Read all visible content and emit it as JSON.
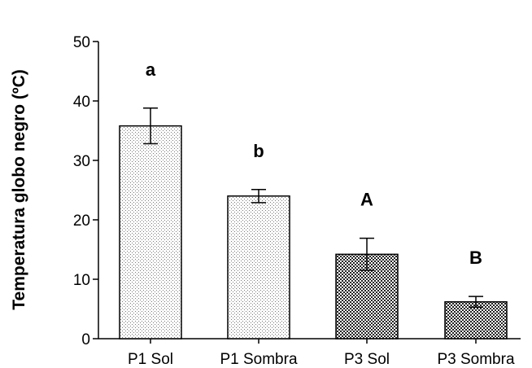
{
  "chart_data": {
    "type": "bar",
    "categories": [
      "P1 Sol",
      "P1 Sombra",
      "P3 Sol",
      "P3 Sombra"
    ],
    "values": [
      35.8,
      24.0,
      14.2,
      6.2
    ],
    "errors": [
      3.0,
      1.1,
      2.7,
      0.9
    ],
    "significance_labels": [
      "a",
      "b",
      "A",
      "B"
    ],
    "fill_patterns": [
      "light-dots",
      "light-dots",
      "dark-checker",
      "dark-checker"
    ],
    "title": "",
    "xlabel": "",
    "ylabel": "Temperatura globo negro (ºC)",
    "ylim": [
      0,
      50
    ],
    "yticks": [
      0,
      10,
      20,
      30,
      40,
      50
    ],
    "grid": false,
    "legend": "none"
  }
}
